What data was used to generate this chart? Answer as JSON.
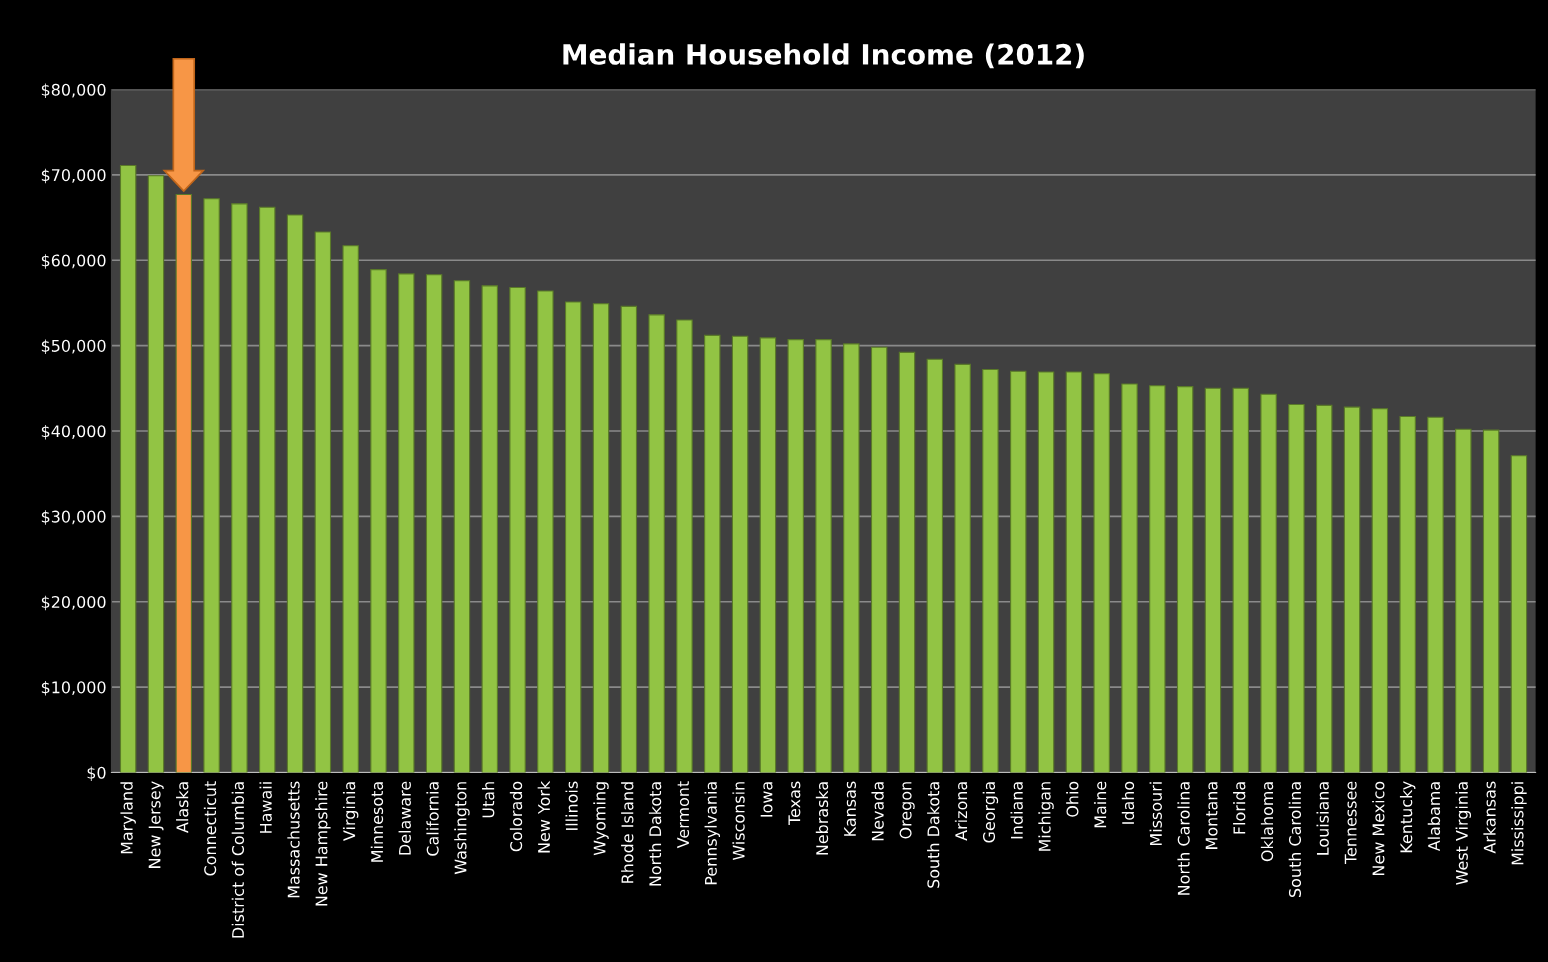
{
  "chart_data": {
    "type": "bar",
    "title": "Median Household Income (2012)",
    "categories": [
      "Maryland",
      "New Jersey",
      "Alaska",
      "Connecticut",
      "District of Columbia",
      "Hawaii",
      "Massachusetts",
      "New Hampshire",
      "Virginia",
      "Minnesota",
      "Delaware",
      "California",
      "Washington",
      "Utah",
      "Colorado",
      "New York",
      "Illinois",
      "Wyoming",
      "Rhode Island",
      "North Dakota",
      "Vermont",
      "Pennsylvania",
      "Wisconsin",
      "Iowa",
      "Texas",
      "Nebraska",
      "Kansas",
      "Nevada",
      "Oregon",
      "South Dakota",
      "Arizona",
      "Georgia",
      "Indiana",
      "Michigan",
      "Ohio",
      "Maine",
      "Idaho",
      "Missouri",
      "North Carolina",
      "Montana",
      "Florida",
      "Oklahoma",
      "South Carolina",
      "Louisiana",
      "Tennessee",
      "New Mexico",
      "Kentucky",
      "Alabama",
      "West Virginia",
      "Arkansas",
      "Mississippi"
    ],
    "values": [
      71100,
      69900,
      67700,
      67200,
      66600,
      66200,
      65300,
      63300,
      61700,
      58900,
      58400,
      58300,
      57600,
      57000,
      56800,
      56400,
      55100,
      54900,
      54600,
      53600,
      53000,
      51200,
      51100,
      50900,
      50700,
      50700,
      50200,
      49800,
      49200,
      48400,
      47800,
      47200,
      47000,
      46900,
      46900,
      46700,
      45500,
      45300,
      45200,
      45000,
      45000,
      44300,
      43100,
      43000,
      42800,
      42600,
      41700,
      41600,
      40200,
      40100,
      37100
    ],
    "colors": [
      "#92c444",
      "#92c444",
      "#f79646",
      "#92c444",
      "#92c444",
      "#92c444",
      "#92c444",
      "#92c444",
      "#92c444",
      "#92c444",
      "#92c444",
      "#92c444",
      "#92c444",
      "#92c444",
      "#92c444",
      "#92c444",
      "#92c444",
      "#92c444",
      "#92c444",
      "#92c444",
      "#92c444",
      "#92c444",
      "#92c444",
      "#92c444",
      "#92c444",
      "#92c444",
      "#92c444",
      "#92c444",
      "#92c444",
      "#92c444",
      "#92c444",
      "#92c444",
      "#92c444",
      "#92c444",
      "#92c444",
      "#92c444",
      "#92c444",
      "#92c444",
      "#92c444",
      "#92c444",
      "#92c444",
      "#92c444",
      "#92c444",
      "#92c444",
      "#92c444",
      "#92c444",
      "#92c444",
      "#92c444",
      "#92c444",
      "#92c444",
      "#92c444"
    ],
    "ylim": [
      0,
      80000
    ],
    "yticks": [
      {
        "value": 0,
        "label": "$0"
      },
      {
        "value": 10000,
        "label": "$10,000"
      },
      {
        "value": 20000,
        "label": "$20,000"
      },
      {
        "value": 30000,
        "label": "$30,000"
      },
      {
        "value": 40000,
        "label": "$40,000"
      },
      {
        "value": 50000,
        "label": "$50,000"
      },
      {
        "value": 60000,
        "label": "$60,000"
      },
      {
        "value": 70000,
        "label": "$70,000"
      },
      {
        "value": 80000,
        "label": "$80,000"
      }
    ],
    "grid": "y"
  }
}
